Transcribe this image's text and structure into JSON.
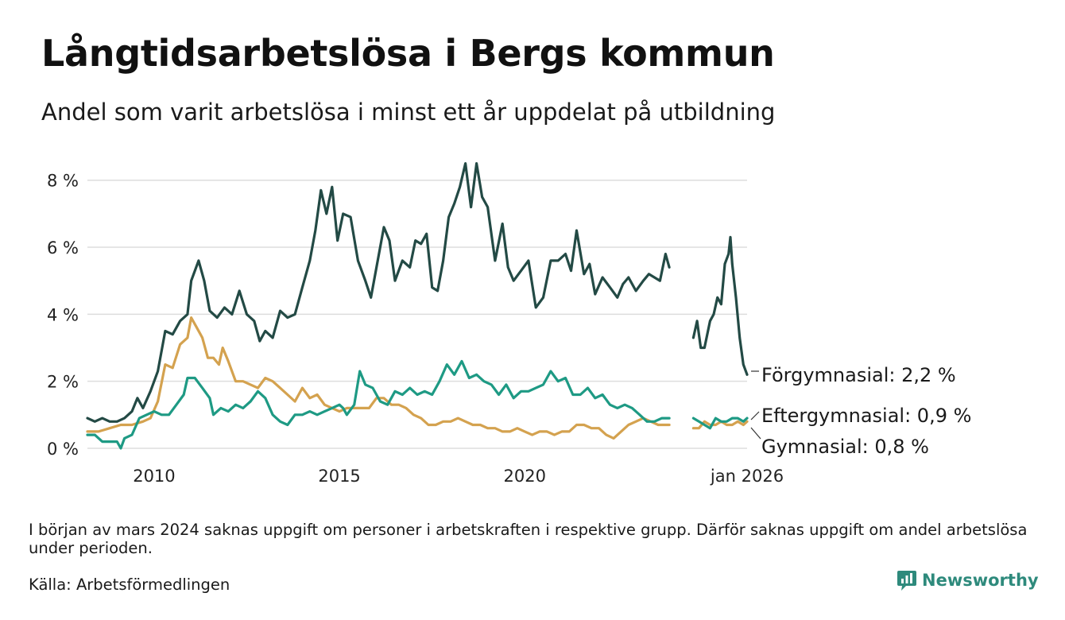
{
  "title": "Långtidsarbetslösa i Bergs kommun",
  "subtitle": "Andel som varit arbetslösa i minst ett år uppdelat på utbildning",
  "note": "I början av mars 2024 saknas uppgift om personer i arbetskraften i respektive grupp. Därför saknas uppgift om andel arbetslösa under perioden.",
  "source": "Källa: Arbetsförmedlingen",
  "logo": {
    "text": "Newsworthy",
    "icon": "chart-bubble-icon"
  },
  "colors": {
    "forgymnasial": "#234a45",
    "eftergymnasial": "#1e9a84",
    "gymnasial": "#d4a24f",
    "grid": "#dddddd"
  },
  "chart_data": {
    "type": "line",
    "title": "Långtidsarbetslösa i Bergs kommun",
    "ylim": [
      0,
      8.8
    ],
    "yticks": [
      0,
      2,
      4,
      6,
      8
    ],
    "ytick_labels": [
      "0 %",
      "2 %",
      "4 %",
      "6 %",
      "8 %"
    ],
    "xlim": [
      2008.2,
      2026.0
    ],
    "xticks": [
      2010,
      2015,
      2020,
      2026
    ],
    "xtick_labels": [
      "2010",
      "2015",
      "2020",
      "jan 2026"
    ],
    "gap": [
      2024.15,
      2024.55
    ],
    "series": [
      {
        "name": "Förgymnasial",
        "color": "#234a45",
        "end_label": "Förgymnasial: 2,2 %",
        "points": [
          [
            2008.2,
            0.9
          ],
          [
            2008.4,
            0.8
          ],
          [
            2008.6,
            0.9
          ],
          [
            2008.8,
            0.8
          ],
          [
            2009.0,
            0.8
          ],
          [
            2009.2,
            0.9
          ],
          [
            2009.4,
            1.1
          ],
          [
            2009.55,
            1.5
          ],
          [
            2009.7,
            1.2
          ],
          [
            2009.9,
            1.7
          ],
          [
            2010.1,
            2.3
          ],
          [
            2010.3,
            3.5
          ],
          [
            2010.5,
            3.4
          ],
          [
            2010.7,
            3.8
          ],
          [
            2010.9,
            4.0
          ],
          [
            2011.0,
            5.0
          ],
          [
            2011.2,
            5.6
          ],
          [
            2011.35,
            5.0
          ],
          [
            2011.5,
            4.1
          ],
          [
            2011.7,
            3.9
          ],
          [
            2011.9,
            4.2
          ],
          [
            2012.1,
            4.0
          ],
          [
            2012.3,
            4.7
          ],
          [
            2012.5,
            4.0
          ],
          [
            2012.7,
            3.8
          ],
          [
            2012.85,
            3.2
          ],
          [
            2013.0,
            3.5
          ],
          [
            2013.2,
            3.3
          ],
          [
            2013.4,
            4.1
          ],
          [
            2013.6,
            3.9
          ],
          [
            2013.8,
            4.0
          ],
          [
            2014.0,
            4.8
          ],
          [
            2014.2,
            5.6
          ],
          [
            2014.35,
            6.5
          ],
          [
            2014.5,
            7.7
          ],
          [
            2014.65,
            7.0
          ],
          [
            2014.8,
            7.8
          ],
          [
            2014.95,
            6.2
          ],
          [
            2015.1,
            7.0
          ],
          [
            2015.3,
            6.9
          ],
          [
            2015.5,
            5.6
          ],
          [
            2015.7,
            5.0
          ],
          [
            2015.85,
            4.5
          ],
          [
            2016.0,
            5.4
          ],
          [
            2016.2,
            6.6
          ],
          [
            2016.35,
            6.2
          ],
          [
            2016.5,
            5.0
          ],
          [
            2016.7,
            5.6
          ],
          [
            2016.9,
            5.4
          ],
          [
            2017.05,
            6.2
          ],
          [
            2017.2,
            6.1
          ],
          [
            2017.35,
            6.4
          ],
          [
            2017.5,
            4.8
          ],
          [
            2017.65,
            4.7
          ],
          [
            2017.8,
            5.6
          ],
          [
            2017.95,
            6.9
          ],
          [
            2018.1,
            7.3
          ],
          [
            2018.25,
            7.8
          ],
          [
            2018.4,
            8.5
          ],
          [
            2018.55,
            7.2
          ],
          [
            2018.7,
            8.5
          ],
          [
            2018.85,
            7.5
          ],
          [
            2019.0,
            7.2
          ],
          [
            2019.2,
            5.6
          ],
          [
            2019.4,
            6.7
          ],
          [
            2019.55,
            5.4
          ],
          [
            2019.7,
            5.0
          ],
          [
            2019.9,
            5.3
          ],
          [
            2020.1,
            5.6
          ],
          [
            2020.3,
            4.2
          ],
          [
            2020.5,
            4.5
          ],
          [
            2020.7,
            5.6
          ],
          [
            2020.9,
            5.6
          ],
          [
            2021.1,
            5.8
          ],
          [
            2021.25,
            5.3
          ],
          [
            2021.4,
            6.5
          ],
          [
            2021.6,
            5.2
          ],
          [
            2021.75,
            5.5
          ],
          [
            2021.9,
            4.6
          ],
          [
            2022.1,
            5.1
          ],
          [
            2022.3,
            4.8
          ],
          [
            2022.5,
            4.5
          ],
          [
            2022.65,
            4.9
          ],
          [
            2022.8,
            5.1
          ],
          [
            2023.0,
            4.7
          ],
          [
            2023.2,
            5.0
          ],
          [
            2023.35,
            5.2
          ],
          [
            2023.5,
            5.1
          ],
          [
            2023.65,
            5.0
          ],
          [
            2023.8,
            5.8
          ],
          [
            2023.9,
            5.4
          ],
          null,
          [
            2024.55,
            3.3
          ],
          [
            2024.65,
            3.8
          ],
          [
            2024.75,
            3.0
          ],
          [
            2024.85,
            3.0
          ],
          [
            2025.0,
            3.8
          ],
          [
            2025.1,
            4.0
          ],
          [
            2025.2,
            4.5
          ],
          [
            2025.3,
            4.3
          ],
          [
            2025.4,
            5.5
          ],
          [
            2025.5,
            5.8
          ],
          [
            2025.55,
            6.3
          ],
          [
            2025.6,
            5.5
          ],
          [
            2025.7,
            4.5
          ],
          [
            2025.8,
            3.3
          ],
          [
            2025.9,
            2.5
          ],
          [
            2026.0,
            2.2
          ]
        ]
      },
      {
        "name": "Eftergymnasial",
        "color": "#1e9a84",
        "end_label": "Eftergymnasial: 0,9 %",
        "points": [
          [
            2008.2,
            0.4
          ],
          [
            2008.4,
            0.4
          ],
          [
            2008.6,
            0.2
          ],
          [
            2008.8,
            0.2
          ],
          [
            2009.0,
            0.2
          ],
          [
            2009.1,
            0.0
          ],
          [
            2009.2,
            0.3
          ],
          [
            2009.4,
            0.4
          ],
          [
            2009.6,
            0.9
          ],
          [
            2009.8,
            1.0
          ],
          [
            2010.0,
            1.1
          ],
          [
            2010.2,
            1.0
          ],
          [
            2010.4,
            1.0
          ],
          [
            2010.6,
            1.3
          ],
          [
            2010.8,
            1.6
          ],
          [
            2010.9,
            2.1
          ],
          [
            2011.1,
            2.1
          ],
          [
            2011.3,
            1.8
          ],
          [
            2011.5,
            1.5
          ],
          [
            2011.6,
            1.0
          ],
          [
            2011.8,
            1.2
          ],
          [
            2012.0,
            1.1
          ],
          [
            2012.2,
            1.3
          ],
          [
            2012.4,
            1.2
          ],
          [
            2012.6,
            1.4
          ],
          [
            2012.8,
            1.7
          ],
          [
            2013.0,
            1.5
          ],
          [
            2013.2,
            1.0
          ],
          [
            2013.4,
            0.8
          ],
          [
            2013.6,
            0.7
          ],
          [
            2013.8,
            1.0
          ],
          [
            2014.0,
            1.0
          ],
          [
            2014.2,
            1.1
          ],
          [
            2014.4,
            1.0
          ],
          [
            2014.6,
            1.1
          ],
          [
            2014.8,
            1.2
          ],
          [
            2015.0,
            1.3
          ],
          [
            2015.1,
            1.2
          ],
          [
            2015.2,
            1.0
          ],
          [
            2015.4,
            1.3
          ],
          [
            2015.55,
            2.3
          ],
          [
            2015.7,
            1.9
          ],
          [
            2015.9,
            1.8
          ],
          [
            2016.1,
            1.4
          ],
          [
            2016.3,
            1.3
          ],
          [
            2016.5,
            1.7
          ],
          [
            2016.7,
            1.6
          ],
          [
            2016.9,
            1.8
          ],
          [
            2017.1,
            1.6
          ],
          [
            2017.3,
            1.7
          ],
          [
            2017.5,
            1.6
          ],
          [
            2017.7,
            2.0
          ],
          [
            2017.9,
            2.5
          ],
          [
            2018.1,
            2.2
          ],
          [
            2018.3,
            2.6
          ],
          [
            2018.5,
            2.1
          ],
          [
            2018.7,
            2.2
          ],
          [
            2018.9,
            2.0
          ],
          [
            2019.1,
            1.9
          ],
          [
            2019.3,
            1.6
          ],
          [
            2019.5,
            1.9
          ],
          [
            2019.7,
            1.5
          ],
          [
            2019.9,
            1.7
          ],
          [
            2020.1,
            1.7
          ],
          [
            2020.3,
            1.8
          ],
          [
            2020.5,
            1.9
          ],
          [
            2020.7,
            2.3
          ],
          [
            2020.9,
            2.0
          ],
          [
            2021.1,
            2.1
          ],
          [
            2021.3,
            1.6
          ],
          [
            2021.5,
            1.6
          ],
          [
            2021.7,
            1.8
          ],
          [
            2021.9,
            1.5
          ],
          [
            2022.1,
            1.6
          ],
          [
            2022.3,
            1.3
          ],
          [
            2022.5,
            1.2
          ],
          [
            2022.7,
            1.3
          ],
          [
            2022.9,
            1.2
          ],
          [
            2023.1,
            1.0
          ],
          [
            2023.3,
            0.8
          ],
          [
            2023.5,
            0.8
          ],
          [
            2023.7,
            0.9
          ],
          [
            2023.9,
            0.9
          ],
          null,
          [
            2024.55,
            0.9
          ],
          [
            2024.7,
            0.8
          ],
          [
            2024.85,
            0.7
          ],
          [
            2025.0,
            0.6
          ],
          [
            2025.15,
            0.9
          ],
          [
            2025.3,
            0.8
          ],
          [
            2025.45,
            0.8
          ],
          [
            2025.6,
            0.9
          ],
          [
            2025.75,
            0.9
          ],
          [
            2025.9,
            0.8
          ],
          [
            2026.0,
            0.9
          ]
        ]
      },
      {
        "name": "Gymnasial",
        "color": "#d4a24f",
        "end_label": "Gymnasial: 0,8 %",
        "points": [
          [
            2008.2,
            0.5
          ],
          [
            2008.5,
            0.5
          ],
          [
            2008.8,
            0.6
          ],
          [
            2009.1,
            0.7
          ],
          [
            2009.4,
            0.7
          ],
          [
            2009.7,
            0.8
          ],
          [
            2009.9,
            0.9
          ],
          [
            2010.1,
            1.4
          ],
          [
            2010.3,
            2.5
          ],
          [
            2010.5,
            2.4
          ],
          [
            2010.7,
            3.1
          ],
          [
            2010.9,
            3.3
          ],
          [
            2011.0,
            3.9
          ],
          [
            2011.15,
            3.6
          ],
          [
            2011.3,
            3.3
          ],
          [
            2011.45,
            2.7
          ],
          [
            2011.6,
            2.7
          ],
          [
            2011.75,
            2.5
          ],
          [
            2011.85,
            3.0
          ],
          [
            2012.0,
            2.6
          ],
          [
            2012.2,
            2.0
          ],
          [
            2012.4,
            2.0
          ],
          [
            2012.6,
            1.9
          ],
          [
            2012.8,
            1.8
          ],
          [
            2013.0,
            2.1
          ],
          [
            2013.2,
            2.0
          ],
          [
            2013.4,
            1.8
          ],
          [
            2013.6,
            1.6
          ],
          [
            2013.8,
            1.4
          ],
          [
            2014.0,
            1.8
          ],
          [
            2014.2,
            1.5
          ],
          [
            2014.4,
            1.6
          ],
          [
            2014.6,
            1.3
          ],
          [
            2014.8,
            1.2
          ],
          [
            2015.0,
            1.1
          ],
          [
            2015.2,
            1.2
          ],
          [
            2015.4,
            1.2
          ],
          [
            2015.6,
            1.2
          ],
          [
            2015.8,
            1.2
          ],
          [
            2016.0,
            1.5
          ],
          [
            2016.2,
            1.5
          ],
          [
            2016.4,
            1.3
          ],
          [
            2016.6,
            1.3
          ],
          [
            2016.8,
            1.2
          ],
          [
            2017.0,
            1.0
          ],
          [
            2017.2,
            0.9
          ],
          [
            2017.4,
            0.7
          ],
          [
            2017.6,
            0.7
          ],
          [
            2017.8,
            0.8
          ],
          [
            2018.0,
            0.8
          ],
          [
            2018.2,
            0.9
          ],
          [
            2018.4,
            0.8
          ],
          [
            2018.6,
            0.7
          ],
          [
            2018.8,
            0.7
          ],
          [
            2019.0,
            0.6
          ],
          [
            2019.2,
            0.6
          ],
          [
            2019.4,
            0.5
          ],
          [
            2019.6,
            0.5
          ],
          [
            2019.8,
            0.6
          ],
          [
            2020.0,
            0.5
          ],
          [
            2020.2,
            0.4
          ],
          [
            2020.4,
            0.5
          ],
          [
            2020.6,
            0.5
          ],
          [
            2020.8,
            0.4
          ],
          [
            2021.0,
            0.5
          ],
          [
            2021.2,
            0.5
          ],
          [
            2021.4,
            0.7
          ],
          [
            2021.6,
            0.7
          ],
          [
            2021.8,
            0.6
          ],
          [
            2022.0,
            0.6
          ],
          [
            2022.2,
            0.4
          ],
          [
            2022.4,
            0.3
          ],
          [
            2022.6,
            0.5
          ],
          [
            2022.8,
            0.7
          ],
          [
            2023.0,
            0.8
          ],
          [
            2023.2,
            0.9
          ],
          [
            2023.4,
            0.8
          ],
          [
            2023.6,
            0.7
          ],
          [
            2023.8,
            0.7
          ],
          [
            2023.9,
            0.7
          ],
          null,
          [
            2024.55,
            0.6
          ],
          [
            2024.7,
            0.6
          ],
          [
            2024.85,
            0.8
          ],
          [
            2025.0,
            0.7
          ],
          [
            2025.15,
            0.7
          ],
          [
            2025.3,
            0.8
          ],
          [
            2025.45,
            0.7
          ],
          [
            2025.6,
            0.7
          ],
          [
            2025.75,
            0.8
          ],
          [
            2025.9,
            0.7
          ],
          [
            2026.0,
            0.8
          ]
        ]
      }
    ]
  }
}
